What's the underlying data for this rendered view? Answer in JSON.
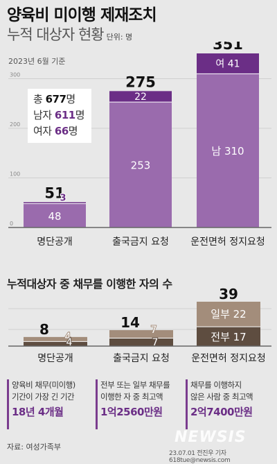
{
  "title": {
    "main": "양육비 미이행 제재조치",
    "sub": "누적 대상자 현황",
    "unit": "단위: 명",
    "date": "2023년 6월 기준"
  },
  "totals": {
    "total_prefix": "총",
    "total_value": "677",
    "total_suffix": "명",
    "male_prefix": "남자",
    "male_value": "611",
    "male_suffix": "명",
    "female_prefix": "여자",
    "female_value": "66",
    "female_suffix": "명"
  },
  "section2_title": "누적대상자 중 채무를 이행한 자의 수",
  "colors": {
    "purple_dark": "#6b2e86",
    "purple_light": "#9a6bad",
    "brown_light": "#a38d7b",
    "brown_dark": "#5e4d40",
    "background": "#e8e8e8"
  },
  "chart_data": [
    {
      "type": "bar",
      "stacked": true,
      "categories": [
        "명단공개",
        "출국금지 요청",
        "운전면허 정지요청"
      ],
      "series": [
        {
          "name": "남",
          "values": [
            48,
            253,
            310
          ]
        },
        {
          "name": "여",
          "values": [
            3,
            22,
            41
          ]
        }
      ],
      "totals": [
        51,
        275,
        351
      ],
      "ylim": [
        0,
        351
      ],
      "yticks": [
        0,
        100,
        200,
        300
      ],
      "unit": "단위: 명"
    },
    {
      "type": "bar",
      "stacked": true,
      "categories": [
        "명단공개",
        "출국금지 요청",
        "운전면허 정지요청"
      ],
      "series": [
        {
          "name": "전부",
          "values": [
            4,
            7,
            17
          ]
        },
        {
          "name": "일부",
          "values": [
            4,
            7,
            22
          ]
        }
      ],
      "totals": [
        8,
        14,
        39
      ],
      "ylim": [
        0,
        39
      ]
    }
  ],
  "cards": [
    {
      "line1": "양육비 채무(미이행)",
      "line2": "기간이 가장 긴 기간",
      "value": "18년 4개월"
    },
    {
      "line1": "전부 또는 일부 채무를",
      "line2": "이행한 자 중 최고액",
      "value": "1억2560만원"
    },
    {
      "line1": "채무를 이행하지",
      "line2": "않은 사람 중 최고액",
      "value": "2억7400만원"
    }
  ],
  "footer": {
    "source": "자료: 여성가족부",
    "credit": "23.07.01  전진우 기자 618tue@newsis.com",
    "watermark": "NEWSIS"
  }
}
